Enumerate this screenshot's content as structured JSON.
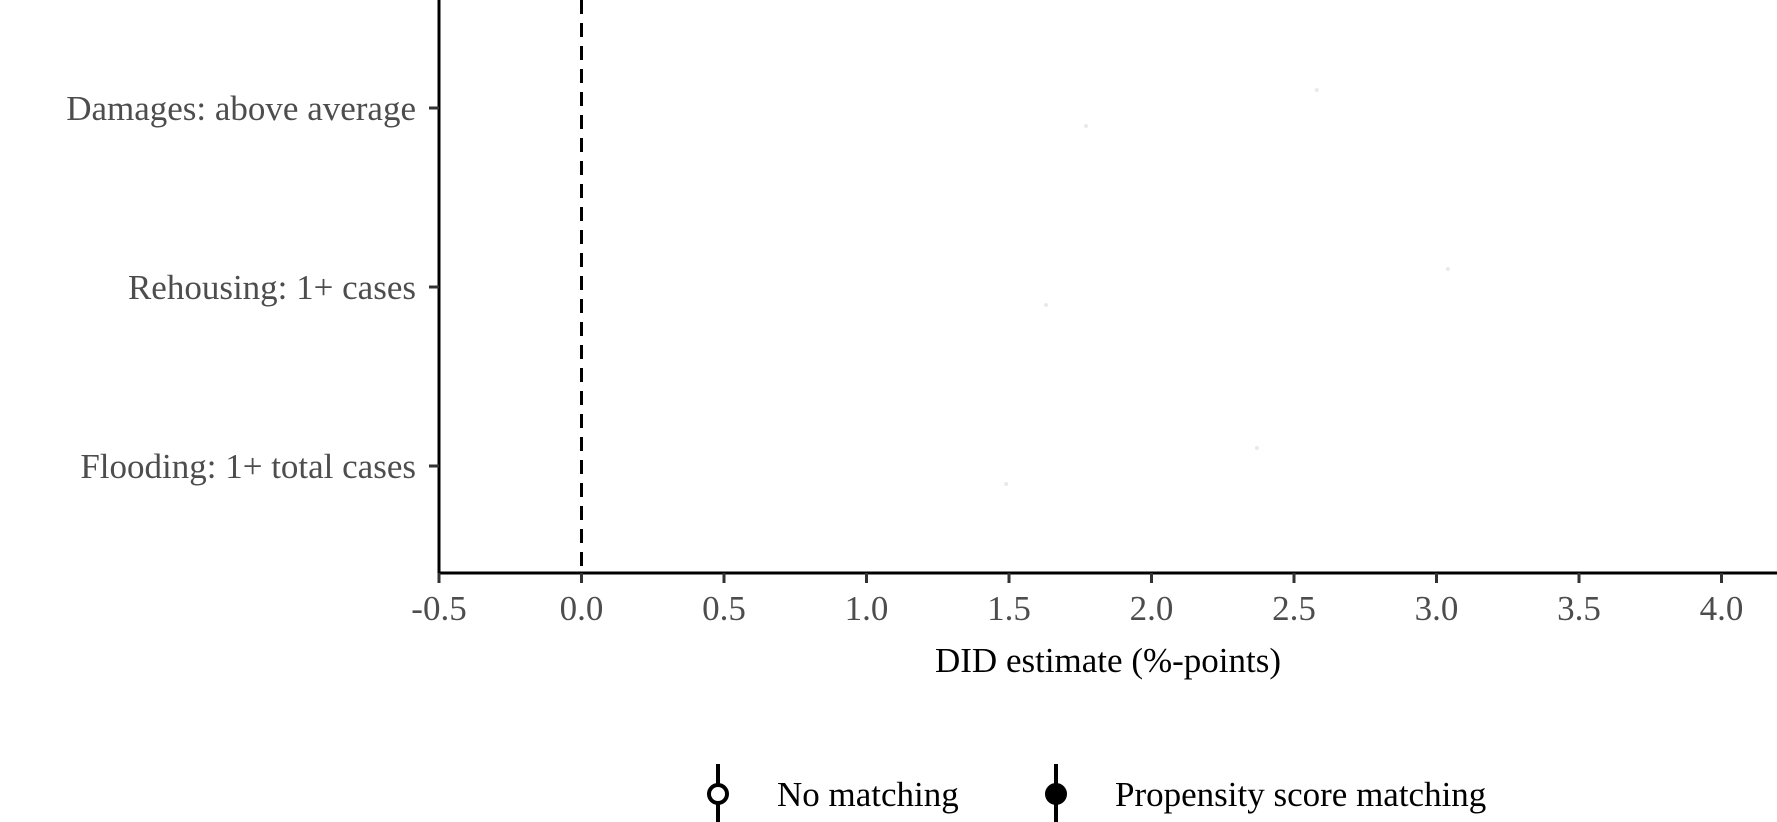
{
  "chart_data": {
    "type": "scatter",
    "subtype": "forest-plot",
    "title": "",
    "xlabel": "DID estimate (%-points)",
    "ylabel": "",
    "xlim": [
      -0.5,
      4.1
    ],
    "x_ticks": [
      -0.5,
      0.0,
      0.5,
      1.0,
      1.5,
      2.0,
      2.5,
      3.0,
      3.5,
      4.0
    ],
    "x_tick_labels": [
      "-0.5",
      "0.0",
      "0.5",
      "1.0",
      "1.5",
      "2.0",
      "2.5",
      "3.0",
      "3.5",
      "4.0"
    ],
    "categories": [
      "Damages: above average",
      "Rehousing: 1+ cases",
      "Flooding: 1+ total cases"
    ],
    "reference_line": {
      "x": 0.0,
      "style": "dashed"
    },
    "grid": false,
    "legend_position": "bottom",
    "series": [
      {
        "name": "No matching",
        "marker": "open-circle",
        "color": "#000000",
        "estimates": [
          2.58,
          3.04,
          2.37
        ],
        "ci_low": [
          null,
          null,
          null
        ],
        "ci_high": [
          null,
          null,
          null
        ]
      },
      {
        "name": "Propensity score matching",
        "marker": "filled-circle",
        "color": "#000000",
        "estimates": [
          1.77,
          1.63,
          1.49
        ],
        "ci_low": [
          null,
          null,
          null
        ],
        "ci_high": [
          null,
          null,
          null
        ]
      }
    ]
  }
}
